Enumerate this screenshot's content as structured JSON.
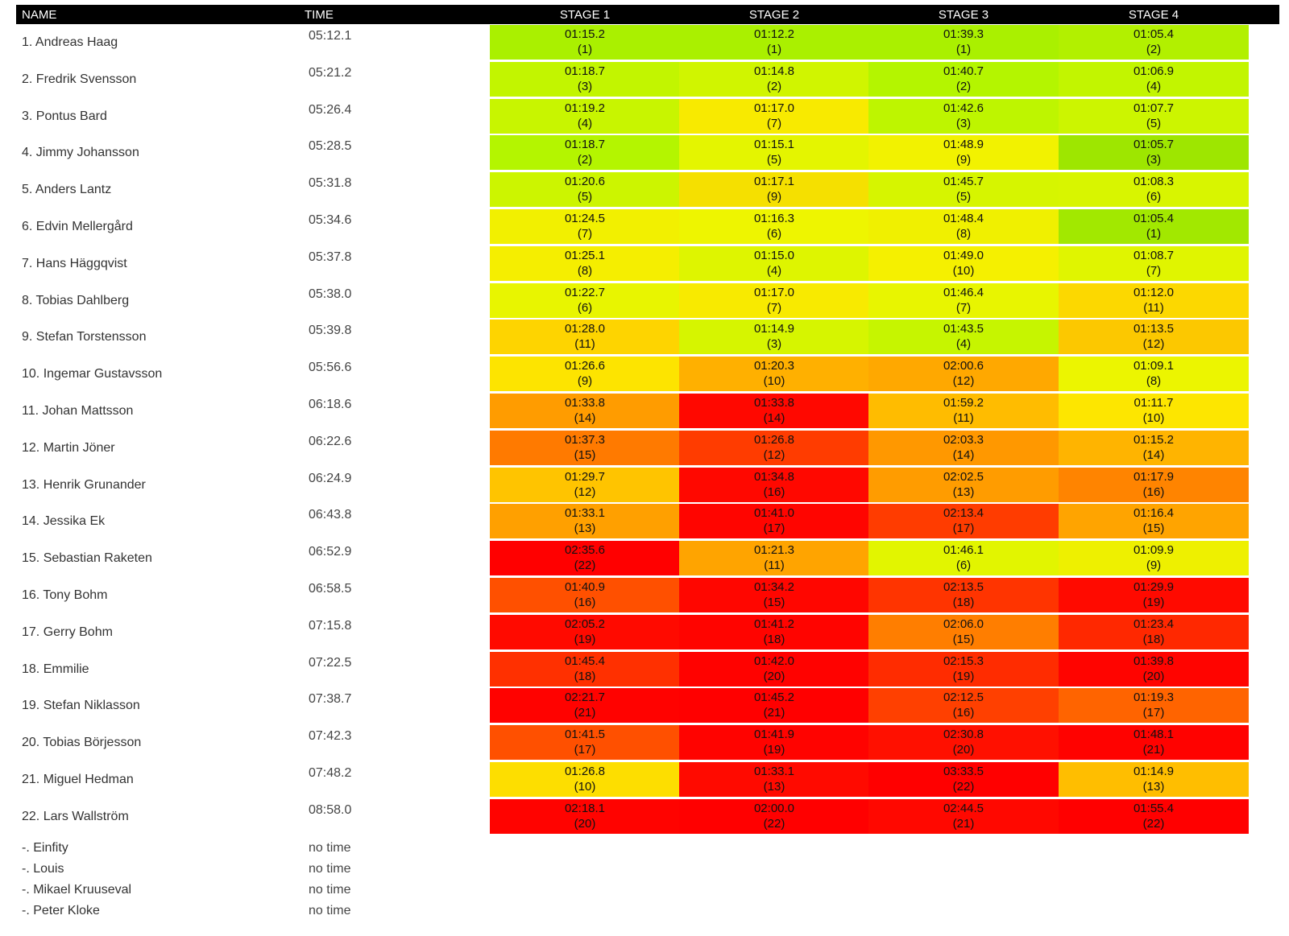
{
  "headers": {
    "name": "NAME",
    "time": "TIME",
    "stages": [
      "STAGE 1",
      "STAGE 2",
      "STAGE 3",
      "STAGE 4"
    ]
  },
  "colors": {
    "stage_rank_1": "#8ee000",
    "stage_rank_22": "#ff0000"
  },
  "rows": [
    {
      "name": "1. Andreas Haag",
      "time": "05:12.1",
      "stages": [
        {
          "time": "01:15.2",
          "rank": "(1)",
          "bg": "#aaf000"
        },
        {
          "time": "01:12.2",
          "rank": "(1)",
          "bg": "#aaf000"
        },
        {
          "time": "01:39.3",
          "rank": "(1)",
          "bg": "#aaf000"
        },
        {
          "time": "01:05.4",
          "rank": "(2)",
          "bg": "#b2f000"
        }
      ]
    },
    {
      "name": "2. Fredrik Svensson",
      "time": "05:21.2",
      "stages": [
        {
          "time": "01:18.7",
          "rank": "(3)",
          "bg": "#c2f500"
        },
        {
          "time": "01:14.8",
          "rank": "(2)",
          "bg": "#d0f500"
        },
        {
          "time": "01:40.7",
          "rank": "(2)",
          "bg": "#b4f500"
        },
        {
          "time": "01:06.9",
          "rank": "(4)",
          "bg": "#c2f500"
        }
      ]
    },
    {
      "name": "3. Pontus Bard",
      "time": "05:26.4",
      "stages": [
        {
          "time": "01:19.2",
          "rank": "(4)",
          "bg": "#c8f500"
        },
        {
          "time": "01:17.0",
          "rank": "(7)",
          "bg": "#f8ea00"
        },
        {
          "time": "01:42.6",
          "rank": "(3)",
          "bg": "#bef500"
        },
        {
          "time": "01:07.7",
          "rank": "(5)",
          "bg": "#ccf500"
        }
      ]
    },
    {
      "name": "4. Jimmy Johansson",
      "time": "05:28.5",
      "stages": [
        {
          "time": "01:18.7",
          "rank": "(2)",
          "bg": "#b4f500"
        },
        {
          "time": "01:15.1",
          "rank": "(5)",
          "bg": "#e4f500"
        },
        {
          "time": "01:48.9",
          "rank": "(9)",
          "bg": "#f2f200"
        },
        {
          "time": "01:05.7",
          "rank": "(3)",
          "bg": "#9ee600"
        }
      ]
    },
    {
      "name": "5. Anders Lantz",
      "time": "05:31.8",
      "stages": [
        {
          "time": "01:20.6",
          "rank": "(5)",
          "bg": "#ccf500"
        },
        {
          "time": "01:17.1",
          "rank": "(9)",
          "bg": "#f5e000"
        },
        {
          "time": "01:45.7",
          "rank": "(5)",
          "bg": "#d6f500"
        },
        {
          "time": "01:08.3",
          "rank": "(6)",
          "bg": "#d8f500"
        }
      ]
    },
    {
      "name": "6. Edvin Mellergård",
      "time": "05:34.6",
      "stages": [
        {
          "time": "01:24.5",
          "rank": "(7)",
          "bg": "#f2f000"
        },
        {
          "time": "01:16.3",
          "rank": "(6)",
          "bg": "#eef500"
        },
        {
          "time": "01:48.4",
          "rank": "(8)",
          "bg": "#f0f000"
        },
        {
          "time": "01:05.4",
          "rank": "(1)",
          "bg": "#a2e800"
        }
      ]
    },
    {
      "name": "7. Hans Häggqvist",
      "time": "05:37.8",
      "stages": [
        {
          "time": "01:25.1",
          "rank": "(8)",
          "bg": "#f5ee00"
        },
        {
          "time": "01:15.0",
          "rank": "(4)",
          "bg": "#def500"
        },
        {
          "time": "01:49.0",
          "rank": "(10)",
          "bg": "#f5f000"
        },
        {
          "time": "01:08.7",
          "rank": "(7)",
          "bg": "#e0f500"
        }
      ]
    },
    {
      "name": "8. Tobias Dahlberg",
      "time": "05:38.0",
      "stages": [
        {
          "time": "01:22.7",
          "rank": "(6)",
          "bg": "#e8f500"
        },
        {
          "time": "01:17.0",
          "rank": "(7)",
          "bg": "#f8ea00"
        },
        {
          "time": "01:46.4",
          "rank": "(7)",
          "bg": "#e8f500"
        },
        {
          "time": "01:12.0",
          "rank": "(11)",
          "bg": "#fcd800"
        }
      ]
    },
    {
      "name": "9. Stefan Torstensson",
      "time": "05:39.8",
      "stages": [
        {
          "time": "01:28.0",
          "rank": "(11)",
          "bg": "#fed400"
        },
        {
          "time": "01:14.9",
          "rank": "(3)",
          "bg": "#d6f500"
        },
        {
          "time": "01:43.5",
          "rank": "(4)",
          "bg": "#c6f500"
        },
        {
          "time": "01:13.5",
          "rank": "(12)",
          "bg": "#fcc800"
        }
      ]
    },
    {
      "name": "10. Ingemar Gustavsson",
      "time": "05:56.6",
      "stages": [
        {
          "time": "01:26.6",
          "rank": "(9)",
          "bg": "#fde400"
        },
        {
          "time": "01:20.3",
          "rank": "(10)",
          "bg": "#ffb000"
        },
        {
          "time": "02:00.6",
          "rank": "(12)",
          "bg": "#ffa800"
        },
        {
          "time": "01:09.1",
          "rank": "(8)",
          "bg": "#ecf500"
        }
      ]
    },
    {
      "name": "11. Johan Mattsson",
      "time": "06:18.6",
      "stages": [
        {
          "time": "01:33.8",
          "rank": "(14)",
          "bg": "#ff9c00"
        },
        {
          "time": "01:33.8",
          "rank": "(14)",
          "bg": "#ff0800"
        },
        {
          "time": "01:59.2",
          "rank": "(11)",
          "bg": "#ffbc00"
        },
        {
          "time": "01:11.7",
          "rank": "(10)",
          "bg": "#fde600"
        }
      ]
    },
    {
      "name": "12. Martin Jöner",
      "time": "06:22.6",
      "stages": [
        {
          "time": "01:37.3",
          "rank": "(15)",
          "bg": "#ff7a00"
        },
        {
          "time": "01:26.8",
          "rank": "(12)",
          "bg": "#ff3c00"
        },
        {
          "time": "02:03.3",
          "rank": "(14)",
          "bg": "#ff9800"
        },
        {
          "time": "01:15.2",
          "rank": "(14)",
          "bg": "#ffb400"
        }
      ]
    },
    {
      "name": "13. Henrik Grunander",
      "time": "06:24.9",
      "stages": [
        {
          "time": "01:29.7",
          "rank": "(12)",
          "bg": "#ffc400"
        },
        {
          "time": "01:34.8",
          "rank": "(16)",
          "bg": "#ff0800"
        },
        {
          "time": "02:02.5",
          "rank": "(13)",
          "bg": "#ff9c00"
        },
        {
          "time": "01:17.9",
          "rank": "(16)",
          "bg": "#ff8400"
        }
      ]
    },
    {
      "name": "14. Jessika Ek",
      "time": "06:43.8",
      "stages": [
        {
          "time": "01:33.1",
          "rank": "(13)",
          "bg": "#ffa000"
        },
        {
          "time": "01:41.0",
          "rank": "(17)",
          "bg": "#ff0500"
        },
        {
          "time": "02:13.4",
          "rank": "(17)",
          "bg": "#ff3c00"
        },
        {
          "time": "01:16.4",
          "rank": "(15)",
          "bg": "#ffa400"
        }
      ]
    },
    {
      "name": "15. Sebastian Raketen",
      "time": "06:52.9",
      "stages": [
        {
          "time": "02:35.6",
          "rank": "(22)",
          "bg": "#ff0000"
        },
        {
          "time": "01:21.3",
          "rank": "(11)",
          "bg": "#ffa400"
        },
        {
          "time": "01:46.1",
          "rank": "(6)",
          "bg": "#e2f500"
        },
        {
          "time": "01:09.9",
          "rank": "(9)",
          "bg": "#eef000"
        }
      ]
    },
    {
      "name": "16. Tony Bohm",
      "time": "06:58.5",
      "stages": [
        {
          "time": "01:40.9",
          "rank": "(16)",
          "bg": "#ff5000"
        },
        {
          "time": "01:34.2",
          "rank": "(15)",
          "bg": "#ff0600"
        },
        {
          "time": "02:13.5",
          "rank": "(18)",
          "bg": "#ff3400"
        },
        {
          "time": "01:29.9",
          "rank": "(19)",
          "bg": "#ff0a00"
        }
      ]
    },
    {
      "name": "17. Gerry Bohm",
      "time": "07:15.8",
      "stages": [
        {
          "time": "02:05.2",
          "rank": "(19)",
          "bg": "#ff0a00"
        },
        {
          "time": "01:41.2",
          "rank": "(18)",
          "bg": "#ff0400"
        },
        {
          "time": "02:06.0",
          "rank": "(15)",
          "bg": "#ff7e00"
        },
        {
          "time": "01:23.4",
          "rank": "(18)",
          "bg": "#ff2800"
        }
      ]
    },
    {
      "name": "18. Emmilie",
      "time": "07:22.5",
      "stages": [
        {
          "time": "01:45.4",
          "rank": "(18)",
          "bg": "#ff3000"
        },
        {
          "time": "01:42.0",
          "rank": "(20)",
          "bg": "#ff0200"
        },
        {
          "time": "02:15.3",
          "rank": "(19)",
          "bg": "#ff2c00"
        },
        {
          "time": "01:39.8",
          "rank": "(20)",
          "bg": "#ff0400"
        }
      ]
    },
    {
      "name": "19. Stefan Niklasson",
      "time": "07:38.7",
      "stages": [
        {
          "time": "02:21.7",
          "rank": "(21)",
          "bg": "#ff0200"
        },
        {
          "time": "01:45.2",
          "rank": "(21)",
          "bg": "#ff0000"
        },
        {
          "time": "02:12.5",
          "rank": "(16)",
          "bg": "#ff4000"
        },
        {
          "time": "01:19.3",
          "rank": "(17)",
          "bg": "#ff6400"
        }
      ]
    },
    {
      "name": "20. Tobias Börjesson",
      "time": "07:42.3",
      "stages": [
        {
          "time": "01:41.5",
          "rank": "(17)",
          "bg": "#ff5000"
        },
        {
          "time": "01:41.9",
          "rank": "(19)",
          "bg": "#ff0300"
        },
        {
          "time": "02:30.8",
          "rank": "(20)",
          "bg": "#ff1000"
        },
        {
          "time": "01:48.1",
          "rank": "(21)",
          "bg": "#ff0200"
        }
      ]
    },
    {
      "name": "21. Miguel Hedman",
      "time": "07:48.2",
      "stages": [
        {
          "time": "01:26.8",
          "rank": "(10)",
          "bg": "#fdde00"
        },
        {
          "time": "01:33.1",
          "rank": "(13)",
          "bg": "#ff0a00"
        },
        {
          "time": "03:33.5",
          "rank": "(22)",
          "bg": "#ff0000"
        },
        {
          "time": "01:14.9",
          "rank": "(13)",
          "bg": "#ffbe00"
        }
      ]
    },
    {
      "name": "22. Lars Wallström",
      "time": "08:58.0",
      "stages": [
        {
          "time": "02:18.1",
          "rank": "(20)",
          "bg": "#ff0300"
        },
        {
          "time": "02:00.0",
          "rank": "(22)",
          "bg": "#ff0000"
        },
        {
          "time": "02:44.5",
          "rank": "(21)",
          "bg": "#ff0800"
        },
        {
          "time": "01:55.4",
          "rank": "(22)",
          "bg": "#ff0000"
        }
      ]
    }
  ],
  "no_time_rows": [
    {
      "name": "-. Einfity",
      "time": "no time"
    },
    {
      "name": "-. Louis",
      "time": "no time"
    },
    {
      "name": "-. Mikael Kruuseval",
      "time": "no time"
    },
    {
      "name": "-. Peter Kloke",
      "time": "no time"
    }
  ]
}
